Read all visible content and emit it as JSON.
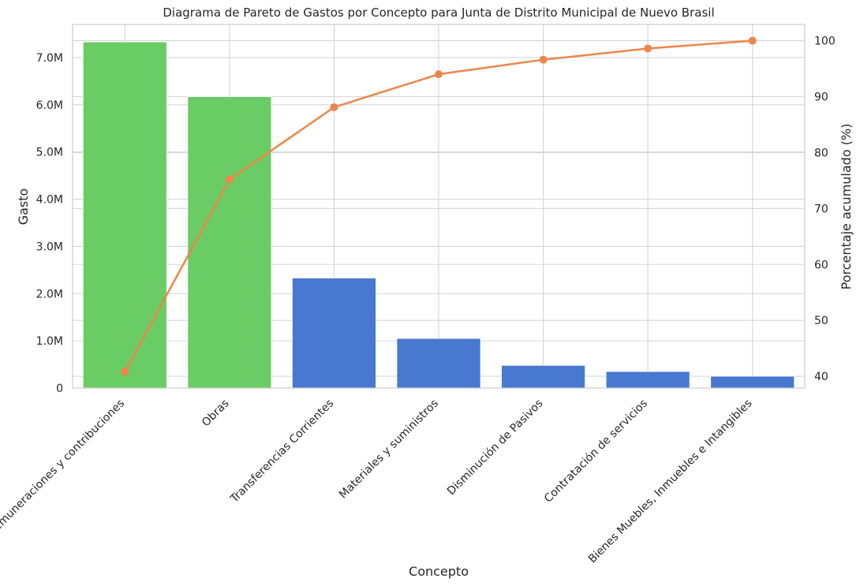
{
  "chart_data": {
    "type": "bar",
    "title": "Diagrama de Pareto de Gastos por Concepto para Junta de Distrito Municipal de Nuevo Brasil",
    "xlabel": "Concepto",
    "ylabel": "Gasto",
    "y2label": "Porcentaje acumulado (%)",
    "categories": [
      "Remuneraciones y contribuciones",
      "Obras",
      "Transferencias Corrientes",
      "Materiales y suministros",
      "Disminución de Pasivos",
      "Contratación de servicios",
      "Bienes Muebles, Inmuebles e Intangibles"
    ],
    "series": [
      {
        "type": "bar",
        "values": [
          7330000,
          6170000,
          2330000,
          1050000,
          480000,
          350000,
          250000
        ],
        "colors": [
          "#6acc64",
          "#6acc64",
          "#4878d0",
          "#4878d0",
          "#4878d0",
          "#4878d0",
          "#4878d0"
        ]
      },
      {
        "type": "line",
        "axis": "right",
        "values": [
          40.8,
          75.2,
          88.1,
          94.0,
          96.6,
          98.6,
          100.0
        ],
        "color": "#ee854a"
      }
    ],
    "ylim": [
      0,
      7700000
    ],
    "y_ticks": [
      0,
      1000000,
      2000000,
      3000000,
      4000000,
      5000000,
      6000000,
      7000000
    ],
    "y_tick_labels": [
      "0",
      "1.0M",
      "2.0M",
      "3.0M",
      "4.0M",
      "5.0M",
      "6.0M",
      "7.0M"
    ],
    "y2lim": [
      37.9,
      102.9
    ],
    "y2_ticks": [
      40,
      50,
      60,
      70,
      80,
      90,
      100
    ],
    "y2_tick_labels": [
      "40",
      "50",
      "60",
      "70",
      "80",
      "90",
      "100"
    ],
    "grid": true
  }
}
